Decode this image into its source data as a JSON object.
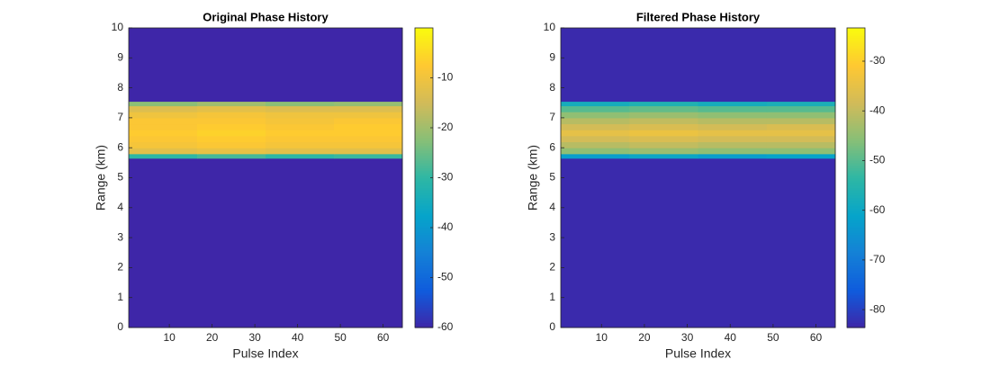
{
  "chart_data": [
    {
      "type": "heatmap",
      "title": "Original Phase History",
      "x_label": "Pulse Index",
      "y_label": "Range (km)",
      "colormap": "parula",
      "xbins": [
        0.5,
        16.5,
        32.5,
        48.5,
        64.5
      ],
      "ybins": [
        0,
        5.65,
        5.8,
        6.0,
        6.2,
        6.4,
        6.6,
        6.8,
        7.0,
        7.2,
        7.4,
        7.55,
        10
      ],
      "values": [
        [
          -60,
          -60,
          -60,
          -60
        ],
        [
          -30,
          -28,
          -30,
          -29
        ],
        [
          -12,
          -11,
          -12,
          -12
        ],
        [
          -9,
          -8,
          -9,
          -9
        ],
        [
          -8,
          -7,
          -8,
          -8
        ],
        [
          -7,
          -6,
          -7,
          -7
        ],
        [
          -8,
          -7,
          -8,
          -7
        ],
        [
          -8,
          -8,
          -9,
          -8
        ],
        [
          -10,
          -9,
          -10,
          -10
        ],
        [
          -13,
          -12,
          -13,
          -13
        ],
        [
          -22,
          -20,
          -22,
          -21
        ],
        [
          -60,
          -60,
          -60,
          -60
        ]
      ],
      "xlim": [
        0.5,
        64.5
      ],
      "xticks": [
        10,
        20,
        30,
        40,
        50,
        60
      ],
      "ylim": [
        0,
        10
      ],
      "yticks": [
        0,
        1,
        2,
        3,
        4,
        5,
        6,
        7,
        8,
        9,
        10
      ],
      "clim": [
        -60,
        0
      ],
      "cticks": [
        -60,
        -50,
        -40,
        -30,
        -20,
        -10
      ]
    },
    {
      "type": "heatmap",
      "title": "Filtered Phase History",
      "x_label": "Pulse Index",
      "y_label": "Range (km)",
      "colormap": "parula",
      "xbins": [
        0.5,
        16.5,
        32.5,
        48.5,
        64.5
      ],
      "ybins": [
        0,
        5.65,
        5.8,
        6.0,
        6.2,
        6.4,
        6.6,
        6.8,
        7.0,
        7.2,
        7.4,
        7.55,
        10
      ],
      "values": [
        [
          -83,
          -83,
          -83,
          -83
        ],
        [
          -62,
          -60,
          -62,
          -61
        ],
        [
          -45,
          -44,
          -45,
          -45
        ],
        [
          -41,
          -40,
          -41,
          -41
        ],
        [
          -38,
          -37,
          -38,
          -38
        ],
        [
          -35,
          -34,
          -35,
          -35
        ],
        [
          -38,
          -37,
          -38,
          -37
        ],
        [
          -41,
          -40,
          -41,
          -41
        ],
        [
          -45,
          -44,
          -45,
          -45
        ],
        [
          -50,
          -49,
          -50,
          -50
        ],
        [
          -58,
          -56,
          -58,
          -57
        ],
        [
          -83,
          -83,
          -83,
          -83
        ]
      ],
      "xlim": [
        0.5,
        64.5
      ],
      "xticks": [
        10,
        20,
        30,
        40,
        50,
        60
      ],
      "ylim": [
        0,
        10
      ],
      "yticks": [
        0,
        1,
        2,
        3,
        4,
        5,
        6,
        7,
        8,
        9,
        10
      ],
      "clim": [
        -83.6,
        -23.3
      ],
      "cticks": [
        -80,
        -70,
        -60,
        -50,
        -40,
        -30
      ]
    }
  ]
}
